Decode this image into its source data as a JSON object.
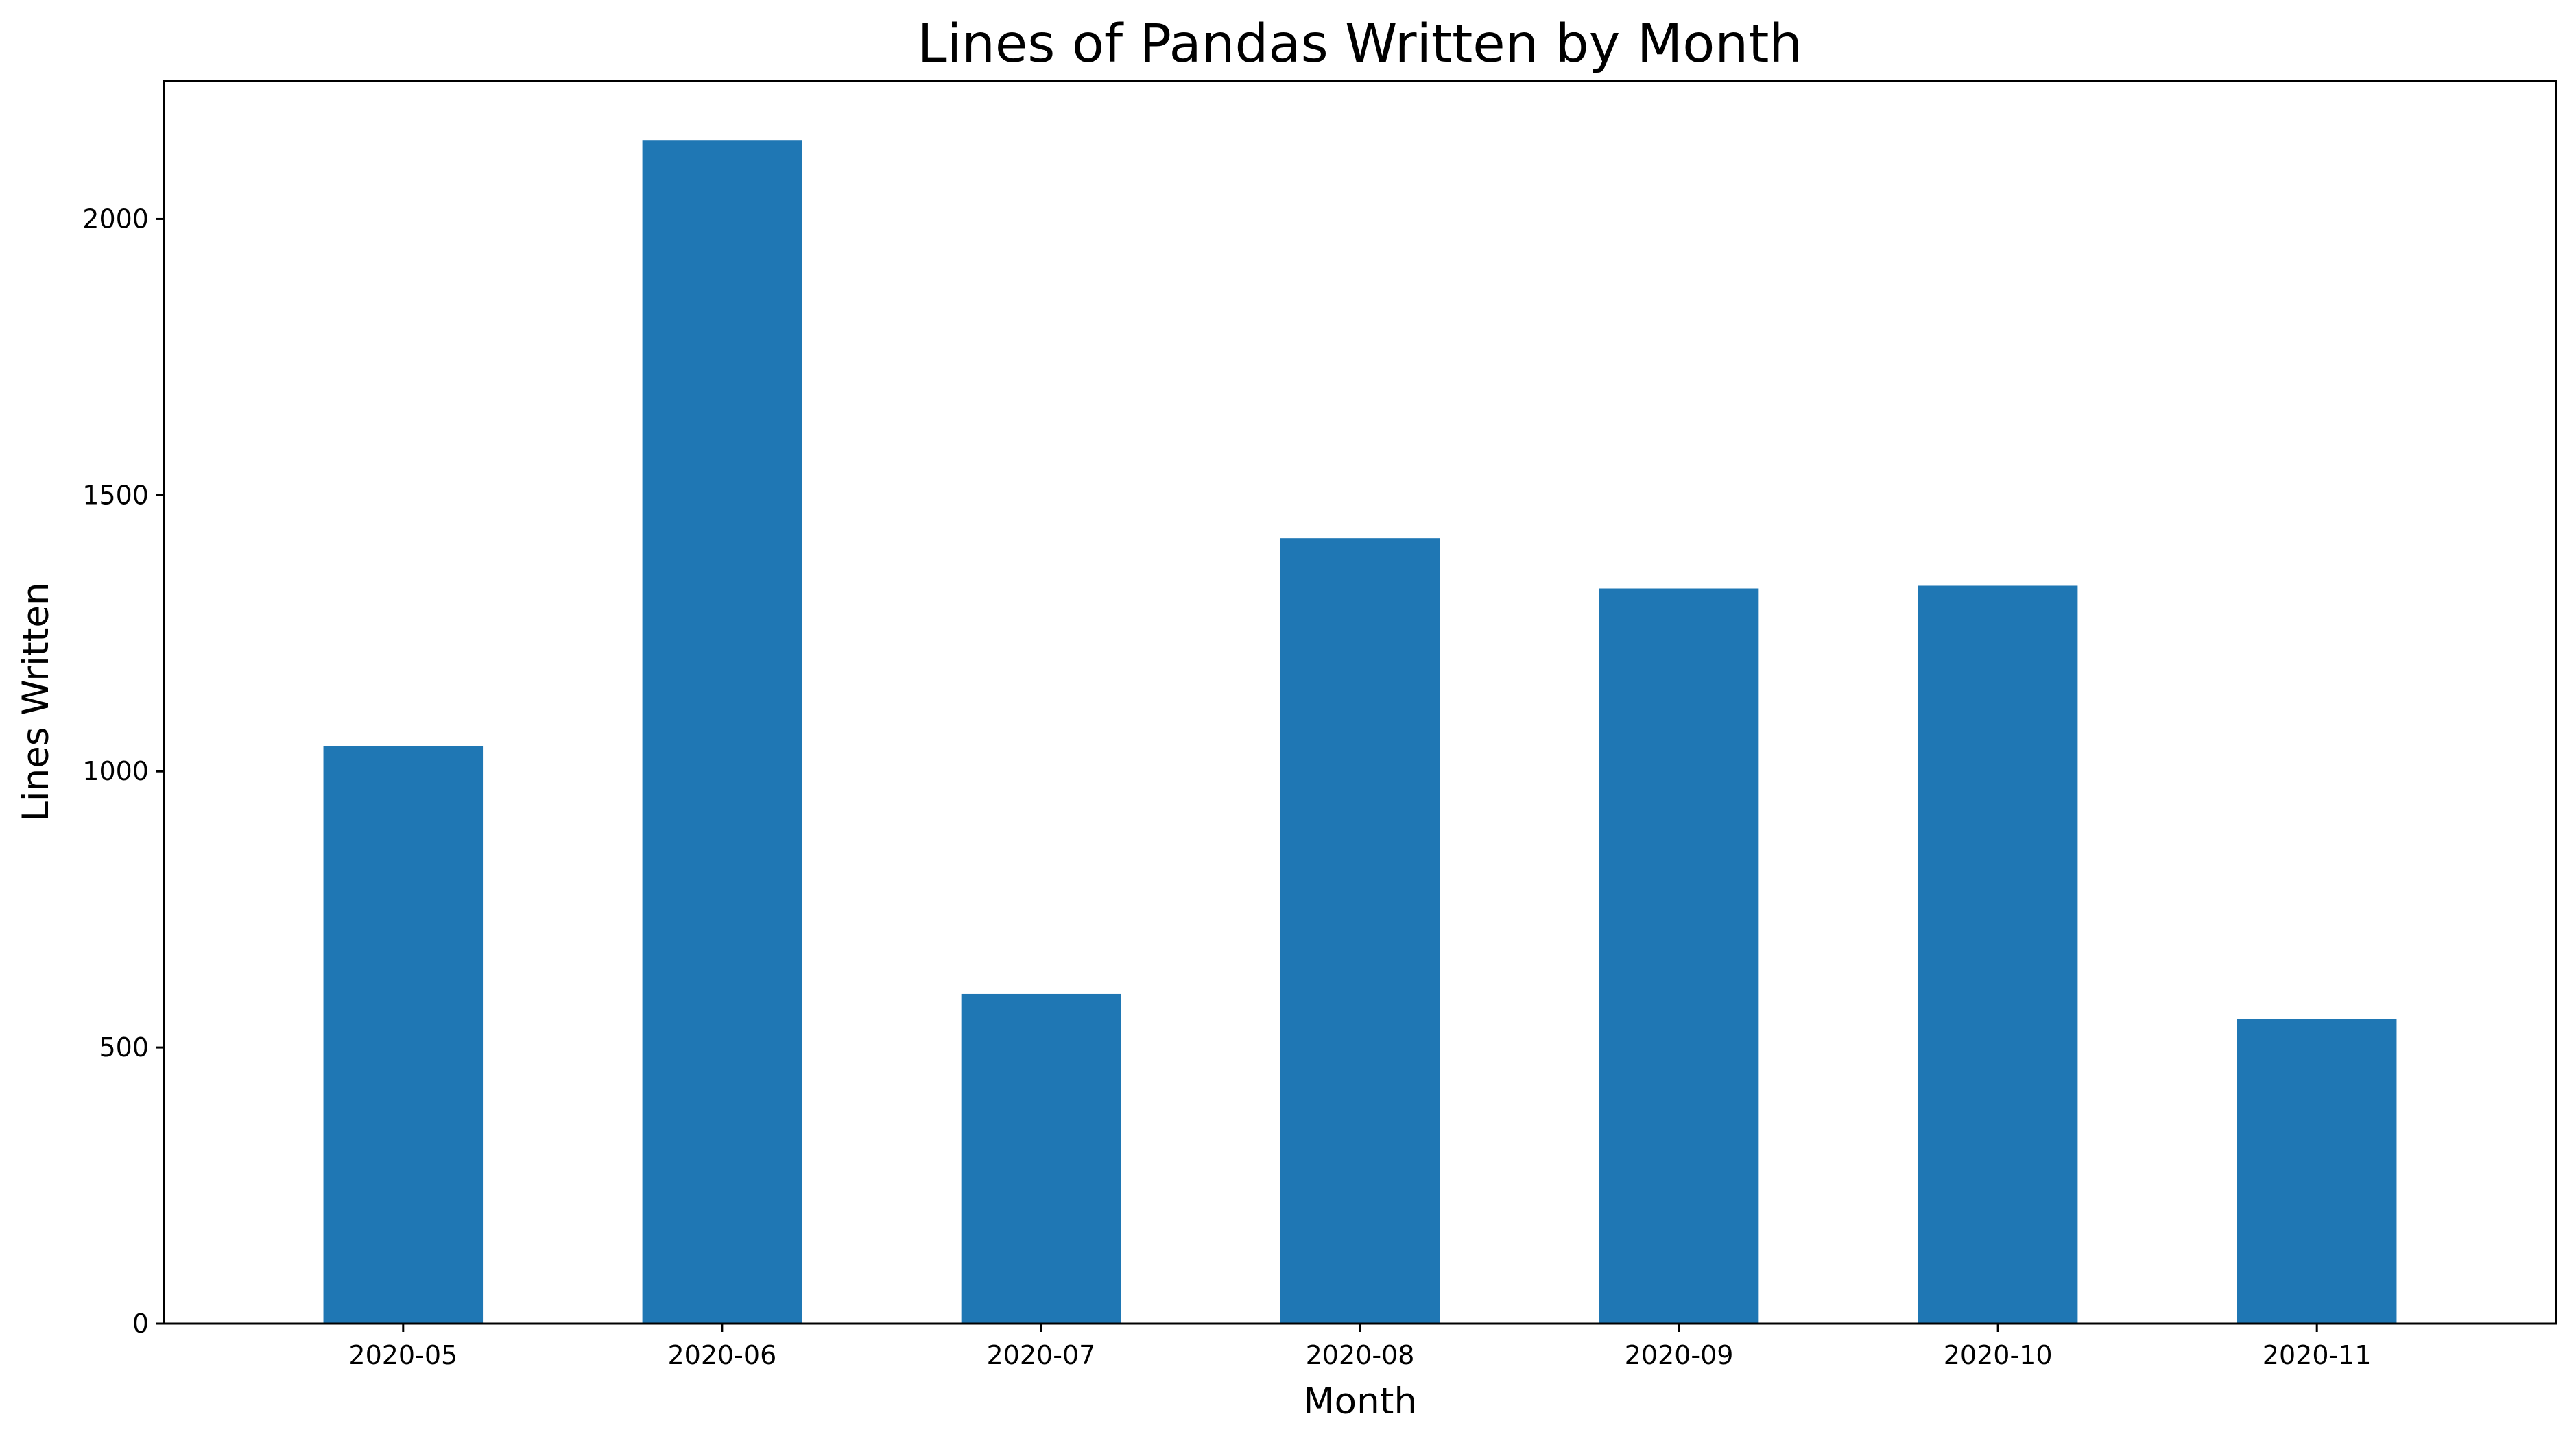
{
  "chart_data": {
    "type": "bar",
    "title": "Lines of Pandas Written by Month",
    "xlabel": "Month",
    "ylabel": "Lines Written",
    "categories": [
      "2020-05",
      "2020-06",
      "2020-07",
      "2020-08",
      "2020-09",
      "2020-10",
      "2020-11"
    ],
    "values": [
      1045,
      2143,
      597,
      1422,
      1331,
      1336,
      552
    ],
    "ylim": [
      0,
      2250
    ],
    "yticks": [
      0,
      500,
      1000,
      1500,
      2000
    ],
    "bar_color": "#1f77b4",
    "grid": false,
    "legend": "none"
  }
}
